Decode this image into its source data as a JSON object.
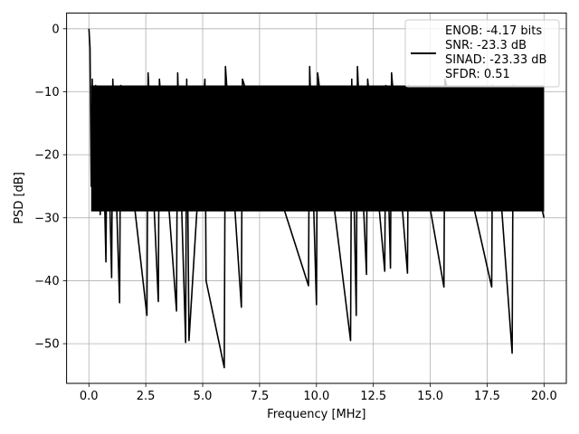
{
  "chart_data": {
    "type": "line",
    "title": "",
    "xlabel": "Frequency [MHz]",
    "ylabel": "PSD [dB]",
    "xlim": [
      -0.98,
      20.98
    ],
    "ylim": [
      -56.3,
      2.5
    ],
    "grid": true,
    "x_ticks": [
      0.0,
      2.5,
      5.0,
      7.5,
      10.0,
      12.5,
      15.0,
      17.5,
      20.0
    ],
    "x_tick_labels": [
      "0.0",
      "2.5",
      "5.0",
      "7.5",
      "10.0",
      "12.5",
      "15.0",
      "17.5",
      "20.0"
    ],
    "y_ticks": [
      0,
      -10,
      -20,
      -30,
      -40,
      -50
    ],
    "y_tick_labels": [
      "0",
      "−10",
      "−20",
      "−30",
      "−40",
      "−50"
    ],
    "legend_position": "top-right",
    "legend_entries": [
      "ENOB: -4.17 bits",
      "SNR: -23.3 dB",
      "SINAD: -23.33 dB",
      "SFDR: 0.51"
    ],
    "series": [
      {
        "color": "#000000",
        "baseline_top": -9,
        "baseline_bottom": -29,
        "x": [
          0.0,
          0.05,
          0.1,
          0.15,
          0.2,
          0.3,
          0.5,
          0.6,
          0.75,
          0.8,
          1.0,
          1.05,
          1.35,
          1.4,
          2.55,
          2.6,
          3.05,
          3.1,
          3.85,
          3.9,
          4.25,
          4.3,
          4.4,
          5.1,
          5.15,
          5.95,
          6.0,
          6.7,
          6.75,
          9.65,
          9.7,
          10.0,
          10.05,
          11.5,
          11.55,
          11.75,
          11.8,
          12.2,
          12.25,
          13.0,
          13.05,
          13.25,
          13.3,
          14.0,
          14.05,
          15.6,
          15.65,
          17.7,
          17.75,
          18.6,
          18.65,
          20.0
        ],
        "y": [
          0.0,
          -3.0,
          -25.0,
          -8.0,
          -27.0,
          -9.0,
          -29.5,
          -12.0,
          -37.0,
          -10.0,
          -39.5,
          -8.0,
          -43.5,
          -9.0,
          -45.5,
          -7.0,
          -43.3,
          -8.0,
          -44.8,
          -7.0,
          -49.8,
          -8.0,
          -49.5,
          -8.0,
          -40.0,
          -53.8,
          -6.0,
          -44.2,
          -8.0,
          -40.8,
          -6.0,
          -43.8,
          -7.0,
          -49.5,
          -8.0,
          -45.5,
          -6.0,
          -39.0,
          -8.0,
          -38.5,
          -9.0,
          -38.0,
          -7.0,
          -38.8,
          -9.0,
          -41.0,
          -8.0,
          -41.0,
          -9.0,
          -51.5,
          -9.0,
          -30.0
        ]
      }
    ]
  }
}
